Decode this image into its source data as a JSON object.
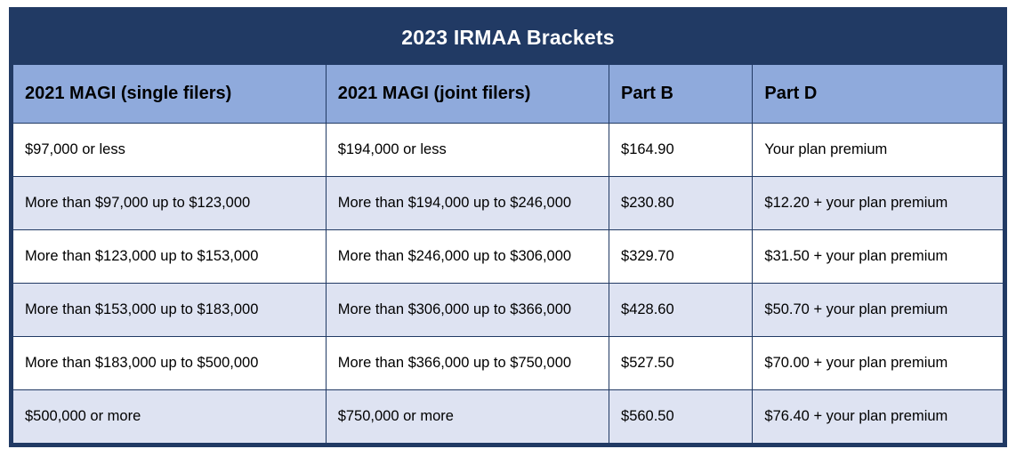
{
  "title": "2023 IRMAA Brackets",
  "colors": {
    "navy": "#213A64",
    "header_blue": "#8FAADC",
    "alt_row": "#DEE3F2",
    "title_text": "#ffffff",
    "body_text": "#000000"
  },
  "table": {
    "columns": [
      "2021 MAGI (single filers)",
      "2021 MAGI (joint filers)",
      "Part B",
      "Part D"
    ],
    "rows": [
      [
        "$97,000 or less",
        "$194,000 or less",
        "$164.90",
        "Your plan premium"
      ],
      [
        "More than $97,000 up to $123,000",
        "More than $194,000 up to $246,000",
        "$230.80",
        "$12.20 + your plan premium"
      ],
      [
        "More than $123,000 up to $153,000",
        "More than $246,000 up to $306,000",
        "$329.70",
        "$31.50 + your plan premium"
      ],
      [
        "More than $153,000 up to $183,000",
        "More than $306,000 up to $366,000",
        "$428.60",
        "$50.70 + your plan premium"
      ],
      [
        "More than $183,000 up to $500,000",
        "More than $366,000 up to $750,000",
        "$527.50",
        "$70.00 + your plan premium"
      ],
      [
        "$500,000 or more",
        "$750,000 or more",
        "$560.50",
        "$76.40 + your plan premium"
      ]
    ]
  }
}
